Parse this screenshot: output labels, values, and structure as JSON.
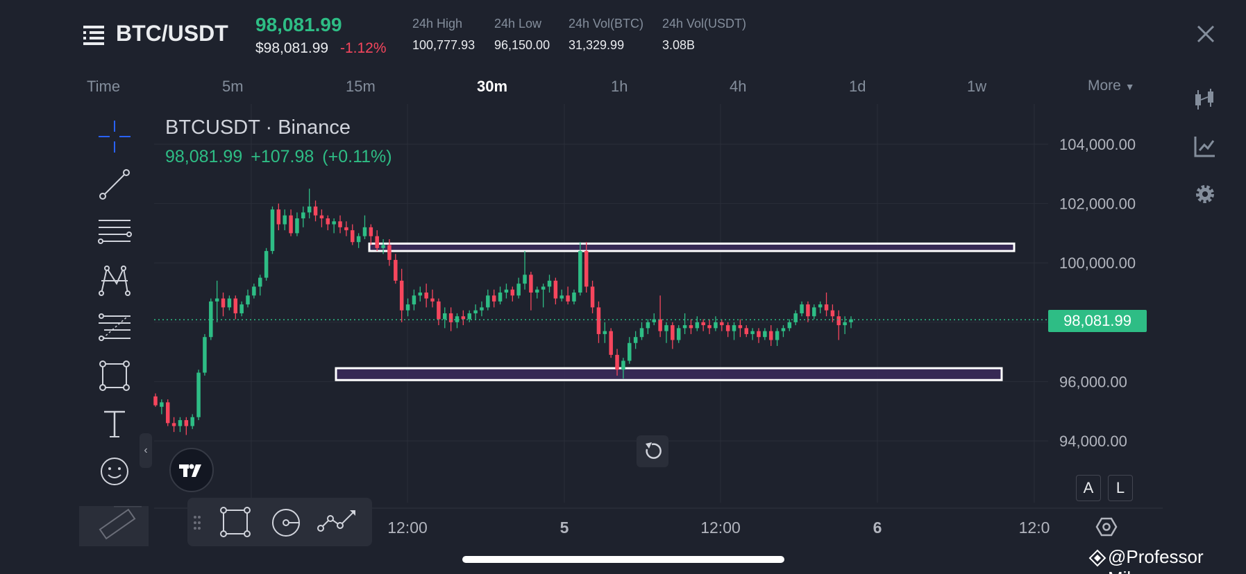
{
  "header": {
    "pair": "BTC/USDT",
    "last_price": "98,081.99",
    "price_usd": "$98,081.99",
    "change_pct": "-1.12%",
    "stats": [
      {
        "label": "24h High",
        "value": "100,777.93"
      },
      {
        "label": "24h Low",
        "value": "96,150.00"
      },
      {
        "label": "24h Vol(BTC)",
        "value": "31,329.99"
      },
      {
        "label": "24h Vol(USDT)",
        "value": "3.08B"
      }
    ]
  },
  "intervals": {
    "time_label": "Time",
    "items": [
      "5m",
      "15m",
      "30m",
      "1h",
      "4h",
      "1d",
      "1w"
    ],
    "active": "30m",
    "more_label": "More"
  },
  "chart": {
    "title": "BTCUSDT · Binance",
    "quote_price": "98,081.99",
    "quote_change": "+107.98",
    "quote_change_pct": "(+0.11%)",
    "current_price_tag": "98,081.99",
    "scale_buttons": [
      "A",
      "L"
    ]
  },
  "chart_data": {
    "type": "candlestick",
    "y_ticks": [
      "104,000.00",
      "102,000.00",
      "100,000.00",
      "96,000.00",
      "94,000.00"
    ],
    "x_ticks": [
      "12:00",
      "5",
      "12:00",
      "6",
      "12:0"
    ],
    "ylim": [
      93000,
      105000
    ],
    "current_price": 98081.99,
    "zones": [
      {
        "low": 100400,
        "high": 100650
      },
      {
        "low": 96050,
        "high": 96450
      }
    ],
    "candles": [
      [
        95500,
        95600,
        95200,
        95150
      ],
      [
        95150,
        95400,
        95300,
        94900
      ],
      [
        95300,
        95400,
        94600,
        94500
      ],
      [
        94600,
        94800,
        94500,
        94300
      ],
      [
        94500,
        94800,
        94700,
        94300
      ],
      [
        94700,
        94800,
        94500,
        94200
      ],
      [
        94500,
        94900,
        94800,
        94400
      ],
      [
        94800,
        96400,
        96300,
        94700
      ],
      [
        96300,
        97600,
        97500,
        96200
      ],
      [
        97500,
        98800,
        98700,
        97400
      ],
      [
        98700,
        99400,
        98800,
        98000
      ],
      [
        98800,
        99000,
        98500,
        98200
      ],
      [
        98500,
        98900,
        98800,
        98400
      ],
      [
        98800,
        98900,
        98300,
        98100
      ],
      [
        98300,
        98700,
        98600,
        98200
      ],
      [
        98600,
        99100,
        98900,
        98500
      ],
      [
        98900,
        99300,
        99200,
        98800
      ],
      [
        99200,
        99600,
        99500,
        98900
      ],
      [
        99500,
        100500,
        100400,
        99400
      ],
      [
        100400,
        101900,
        101800,
        100300
      ],
      [
        101800,
        102000,
        101300,
        101100
      ],
      [
        101300,
        101800,
        101600,
        101100
      ],
      [
        101600,
        101800,
        101000,
        100900
      ],
      [
        101000,
        101700,
        101500,
        100900
      ],
      [
        101500,
        101900,
        101700,
        101200
      ],
      [
        101700,
        102500,
        101900,
        101500
      ],
      [
        101900,
        102100,
        101600,
        101400
      ],
      [
        101600,
        101800,
        101500,
        101200
      ],
      [
        101500,
        101600,
        101300,
        101100
      ],
      [
        101300,
        101500,
        101400,
        101000
      ],
      [
        101400,
        101600,
        101200,
        101000
      ],
      [
        101200,
        101400,
        101100,
        100900
      ],
      [
        101100,
        101300,
        100700,
        100600
      ],
      [
        100700,
        101000,
        100900,
        100500
      ],
      [
        100900,
        101600,
        101200,
        100800
      ],
      [
        101200,
        101300,
        100900,
        100600
      ],
      [
        100900,
        101100,
        100500,
        100400
      ],
      [
        100500,
        100800,
        100600,
        100300
      ],
      [
        100600,
        100800,
        100100,
        99900
      ],
      [
        100100,
        100300,
        99400,
        99300
      ],
      [
        99400,
        99800,
        98400,
        98000
      ],
      [
        98400,
        98800,
        98600,
        98200
      ],
      [
        98600,
        99100,
        98900,
        98400
      ],
      [
        98900,
        99200,
        99000,
        98700
      ],
      [
        99000,
        99300,
        98800,
        98500
      ],
      [
        98800,
        99100,
        98700,
        98500
      ],
      [
        98700,
        98800,
        98100,
        97900
      ],
      [
        98100,
        98500,
        98300,
        97800
      ],
      [
        98300,
        98500,
        98000,
        97700
      ],
      [
        98000,
        98300,
        98200,
        97800
      ],
      [
        98200,
        98400,
        98100,
        97900
      ],
      [
        98100,
        98400,
        98300,
        98000
      ],
      [
        98300,
        98600,
        98400,
        98100
      ],
      [
        98400,
        98700,
        98500,
        98200
      ],
      [
        98500,
        99100,
        98900,
        98400
      ],
      [
        98900,
        99100,
        98700,
        98500
      ],
      [
        98700,
        99200,
        99000,
        98600
      ],
      [
        99000,
        99300,
        99100,
        98800
      ],
      [
        99100,
        99200,
        98900,
        98700
      ],
      [
        98900,
        99500,
        99300,
        98800
      ],
      [
        99300,
        100400,
        99600,
        99100
      ],
      [
        99600,
        99700,
        99000,
        98400
      ],
      [
        99000,
        99200,
        99100,
        98800
      ],
      [
        99100,
        99300,
        99200,
        98500
      ],
      [
        99200,
        99600,
        99400,
        99000
      ],
      [
        99400,
        99500,
        98800,
        98600
      ],
      [
        98800,
        99100,
        98900,
        98700
      ],
      [
        98900,
        99200,
        98700,
        98600
      ],
      [
        98700,
        99100,
        99000,
        98600
      ],
      [
        99000,
        100700,
        100400,
        98900
      ],
      [
        100400,
        100700,
        99200,
        99000
      ],
      [
        99200,
        99400,
        98500,
        98300
      ],
      [
        98500,
        98700,
        97600,
        97300
      ],
      [
        97600,
        98000,
        97700,
        97300
      ],
      [
        97700,
        97800,
        96900,
        96800
      ],
      [
        96900,
        97100,
        96400,
        96200
      ],
      [
        96400,
        96800,
        96700,
        96100
      ],
      [
        96700,
        97500,
        97300,
        96600
      ],
      [
        97300,
        97700,
        97500,
        97100
      ],
      [
        97500,
        98000,
        97800,
        97400
      ],
      [
        97800,
        98100,
        98000,
        97600
      ],
      [
        98000,
        98300,
        98100,
        97900
      ],
      [
        98100,
        98900,
        97700,
        97500
      ],
      [
        97700,
        98000,
        97900,
        97300
      ],
      [
        97900,
        98000,
        97400,
        97100
      ],
      [
        97400,
        97900,
        97800,
        97300
      ],
      [
        97800,
        98300,
        97900,
        97600
      ],
      [
        97900,
        98100,
        97800,
        97600
      ],
      [
        97800,
        98200,
        98000,
        97700
      ],
      [
        98000,
        98100,
        97900,
        97700
      ],
      [
        97900,
        98100,
        97800,
        97600
      ],
      [
        97800,
        98200,
        98000,
        97700
      ],
      [
        98000,
        98100,
        97900,
        97700
      ],
      [
        97900,
        98000,
        97700,
        97500
      ],
      [
        97700,
        98000,
        97900,
        97400
      ],
      [
        97900,
        98100,
        97800,
        97500
      ],
      [
        97800,
        97900,
        97600,
        97500
      ],
      [
        97600,
        97800,
        97700,
        97400
      ],
      [
        97700,
        97800,
        97500,
        97300
      ],
      [
        97500,
        97800,
        97700,
        97400
      ],
      [
        97700,
        97900,
        97400,
        97200
      ],
      [
        97400,
        97800,
        97700,
        97200
      ],
      [
        97700,
        97900,
        97800,
        97500
      ],
      [
        97800,
        98100,
        98000,
        97700
      ],
      [
        98000,
        98400,
        98300,
        97900
      ],
      [
        98300,
        98700,
        98600,
        98200
      ],
      [
        98600,
        98700,
        98200,
        98000
      ],
      [
        98200,
        98600,
        98500,
        98100
      ],
      [
        98500,
        98700,
        98600,
        98300
      ],
      [
        98600,
        99000,
        98400,
        98200
      ],
      [
        98400,
        98600,
        98200,
        98000
      ],
      [
        98200,
        98400,
        97900,
        97400
      ],
      [
        97900,
        98200,
        98000,
        97600
      ],
      [
        98000,
        98200,
        98100,
        97800
      ]
    ]
  },
  "attribution": {
    "watermark": "@Professor Mike"
  }
}
